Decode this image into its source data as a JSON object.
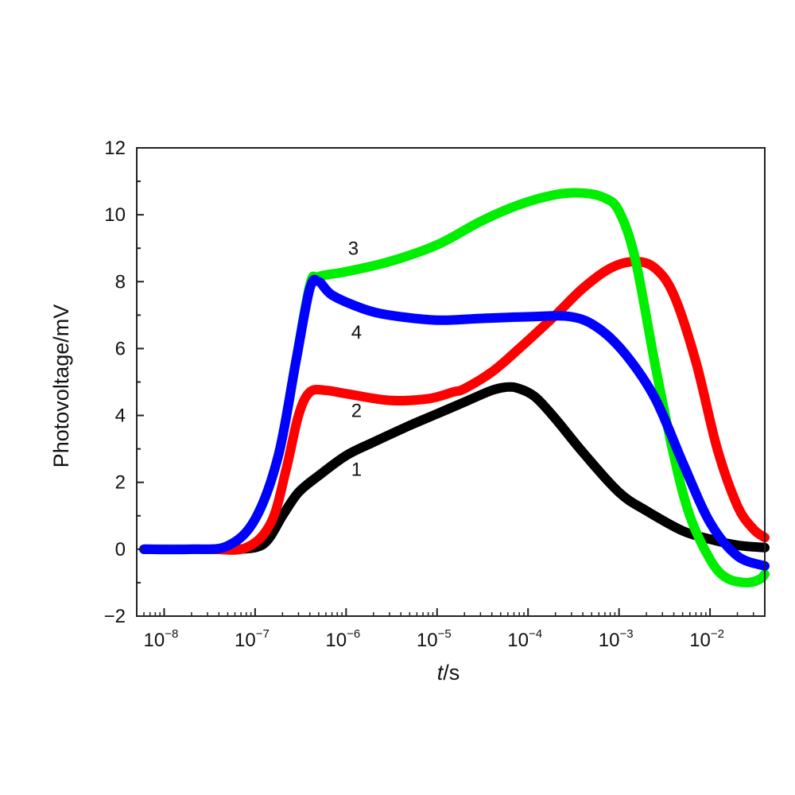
{
  "chart_data": {
    "type": "line",
    "xlabel": {
      "italic": "t",
      "rest": "/s"
    },
    "ylabel": "Photovoltage/mV",
    "x_scale": "log",
    "xlim": [
      5e-09,
      0.04
    ],
    "ylim": [
      -2,
      12
    ],
    "y_ticks": [
      -2,
      0,
      2,
      4,
      6,
      8,
      10,
      12
    ],
    "y_tick_labels": [
      "−2",
      "0",
      "2",
      "4",
      "6",
      "8",
      "10",
      "12"
    ],
    "x_ticks": [
      {
        "value": 1e-08,
        "base": "10",
        "exp": "-8"
      },
      {
        "value": 1e-07,
        "base": "10",
        "exp": "-7"
      },
      {
        "value": 1e-06,
        "base": "10",
        "exp": "-6"
      },
      {
        "value": 1e-05,
        "base": "10",
        "exp": "-5"
      },
      {
        "value": 0.0001,
        "base": "10",
        "exp": "-4"
      },
      {
        "value": 0.001,
        "base": "10",
        "exp": "-3"
      },
      {
        "value": 0.01,
        "base": "10",
        "exp": "-2"
      }
    ],
    "grid": false,
    "series": [
      {
        "label": "1",
        "color": "#000000",
        "label_at": [
          1.3e-06,
          2.2
        ],
        "points": [
          [
            6e-09,
            0
          ],
          [
            2e-08,
            0
          ],
          [
            5e-08,
            0
          ],
          [
            1e-07,
            0.05
          ],
          [
            1.4e-07,
            0.3
          ],
          [
            2e-07,
            1.0
          ],
          [
            3e-07,
            1.7
          ],
          [
            5e-07,
            2.2
          ],
          [
            1e-06,
            2.8
          ],
          [
            2e-06,
            3.2
          ],
          [
            5e-06,
            3.7
          ],
          [
            1e-05,
            4.05
          ],
          [
            2e-05,
            4.4
          ],
          [
            4e-05,
            4.75
          ],
          [
            6e-05,
            4.85
          ],
          [
            8e-05,
            4.8
          ],
          [
            0.00012,
            4.55
          ],
          [
            0.0002,
            3.9
          ],
          [
            0.0004,
            2.9
          ],
          [
            0.001,
            1.7
          ],
          [
            0.002,
            1.15
          ],
          [
            0.005,
            0.55
          ],
          [
            0.01,
            0.3
          ],
          [
            0.02,
            0.12
          ],
          [
            0.04,
            0.05
          ]
        ]
      },
      {
        "label": "2",
        "color": "#ff0000",
        "label_at": [
          1.3e-06,
          3.95
        ],
        "points": [
          [
            6e-09,
            0
          ],
          [
            3e-08,
            0
          ],
          [
            8e-08,
            0.05
          ],
          [
            1.5e-07,
            0.8
          ],
          [
            2.2e-07,
            2.4
          ],
          [
            3e-07,
            4.0
          ],
          [
            4e-07,
            4.7
          ],
          [
            6e-07,
            4.75
          ],
          [
            1e-06,
            4.65
          ],
          [
            3e-06,
            4.45
          ],
          [
            8e-06,
            4.5
          ],
          [
            1.5e-05,
            4.7
          ],
          [
            2e-05,
            4.8
          ],
          [
            4e-05,
            5.3
          ],
          [
            8e-05,
            6.0
          ],
          [
            0.0002,
            7.0
          ],
          [
            0.0004,
            7.8
          ],
          [
            0.0008,
            8.4
          ],
          [
            0.0015,
            8.6
          ],
          [
            0.0025,
            8.4
          ],
          [
            0.004,
            7.6
          ],
          [
            0.007,
            5.6
          ],
          [
            0.012,
            3.0
          ],
          [
            0.02,
            1.3
          ],
          [
            0.03,
            0.6
          ],
          [
            0.04,
            0.35
          ]
        ]
      },
      {
        "label": "3",
        "color": "#00ee00",
        "label_at": [
          1.2e-06,
          8.8
        ],
        "points": [
          [
            6e-09,
            0
          ],
          [
            2e-08,
            0
          ],
          [
            5e-08,
            0.1
          ],
          [
            1e-07,
            0.9
          ],
          [
            1.8e-07,
            2.8
          ],
          [
            2.8e-07,
            5.6
          ],
          [
            4e-07,
            7.9
          ],
          [
            5e-07,
            8.15
          ],
          [
            1e-06,
            8.3
          ],
          [
            3e-06,
            8.6
          ],
          [
            1e-05,
            9.1
          ],
          [
            3e-05,
            9.8
          ],
          [
            8e-05,
            10.3
          ],
          [
            0.0002,
            10.6
          ],
          [
            0.0004,
            10.65
          ],
          [
            0.0007,
            10.5
          ],
          [
            0.001,
            10.1
          ],
          [
            0.0015,
            8.7
          ],
          [
            0.0025,
            5.5
          ],
          [
            0.004,
            2.8
          ],
          [
            0.006,
            1.0
          ],
          [
            0.01,
            -0.3
          ],
          [
            0.015,
            -0.85
          ],
          [
            0.025,
            -1.0
          ],
          [
            0.035,
            -0.9
          ],
          [
            0.04,
            -0.75
          ]
        ]
      },
      {
        "label": "4",
        "color": "#0000ff",
        "label_at": [
          1.3e-06,
          6.3
        ],
        "points": [
          [
            6e-09,
            0
          ],
          [
            2e-08,
            0
          ],
          [
            5e-08,
            0.1
          ],
          [
            1e-07,
            0.9
          ],
          [
            1.8e-07,
            2.8
          ],
          [
            2.8e-07,
            5.6
          ],
          [
            4e-07,
            7.8
          ],
          [
            5e-07,
            8.0
          ],
          [
            7e-07,
            7.6
          ],
          [
            1.5e-06,
            7.2
          ],
          [
            3e-06,
            7.0
          ],
          [
            1e-05,
            6.85
          ],
          [
            3e-05,
            6.9
          ],
          [
            0.0001,
            6.95
          ],
          [
            0.0003,
            6.95
          ],
          [
            0.0006,
            6.6
          ],
          [
            0.0012,
            5.8
          ],
          [
            0.0025,
            4.5
          ],
          [
            0.005,
            2.6
          ],
          [
            0.01,
            0.8
          ],
          [
            0.02,
            -0.2
          ],
          [
            0.04,
            -0.5
          ]
        ]
      }
    ]
  }
}
